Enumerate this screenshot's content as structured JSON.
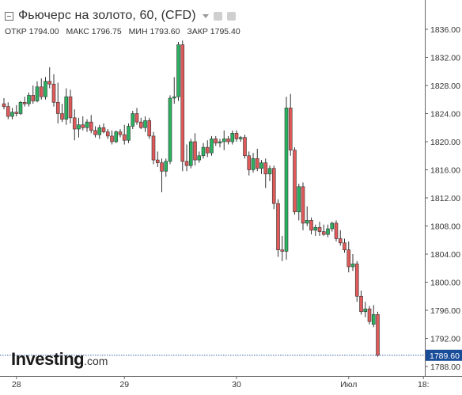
{
  "header": {
    "title": "Фьючерс на золото, 60, (CFD)",
    "ohlc": [
      {
        "label": "ОТКР",
        "value": "1794.00"
      },
      {
        "label": "МАКС",
        "value": "1796.75"
      },
      {
        "label": "МИН",
        "value": "1793.60"
      },
      {
        "label": "ЗАКР",
        "value": "1795.40"
      }
    ]
  },
  "logo": {
    "main": "Investing",
    "suffix": ".com"
  },
  "colors": {
    "up": "#2bb15f",
    "down": "#e05a5a",
    "wick": "#333333",
    "axis": "#666666",
    "price_line": "#1a4d99"
  },
  "chart_data": {
    "type": "candlestick",
    "title": "Фьючерс на золото, 60, (CFD)",
    "xlabel": "",
    "ylabel": "",
    "ylim": [
      1787,
      1839
    ],
    "y_ticks": [
      1788,
      1792,
      1796,
      1800,
      1804,
      1808,
      1812,
      1816,
      1820,
      1824,
      1828,
      1832,
      1836
    ],
    "y_tick_labels": [
      "1788.00",
      "1792.00",
      "1796.00",
      "1800.00",
      "1804.00",
      "1808.00",
      "1812.00",
      "1816.00",
      "1820.00",
      "1824.00",
      "1828.00",
      "1832.00",
      "1836.00"
    ],
    "x_ticks": [
      {
        "label": "28",
        "index": 3
      },
      {
        "label": "29",
        "index": 29
      },
      {
        "label": "30",
        "index": 56
      },
      {
        "label": "Июл",
        "index": 83
      },
      {
        "label": "18:",
        "index": 101
      }
    ],
    "current_price": 1789.6,
    "current_price_label": "1789.60",
    "grid": false,
    "candles": [
      [
        1825.4,
        1826.2,
        1824.6,
        1825.0
      ],
      [
        1825.0,
        1825.6,
        1823.2,
        1823.6
      ],
      [
        1823.6,
        1824.8,
        1823.2,
        1824.2
      ],
      [
        1824.2,
        1825.2,
        1823.6,
        1824.0
      ],
      [
        1824.0,
        1825.8,
        1823.8,
        1825.6
      ],
      [
        1825.6,
        1826.4,
        1825.0,
        1825.4
      ],
      [
        1825.4,
        1827.0,
        1825.0,
        1826.6
      ],
      [
        1826.6,
        1828.0,
        1825.4,
        1825.8
      ],
      [
        1825.8,
        1828.6,
        1825.6,
        1827.8
      ],
      [
        1827.8,
        1829.0,
        1826.0,
        1826.4
      ],
      [
        1826.4,
        1829.2,
        1826.0,
        1828.6
      ],
      [
        1828.6,
        1830.6,
        1827.6,
        1828.2
      ],
      [
        1828.2,
        1829.6,
        1825.0,
        1825.6
      ],
      [
        1825.6,
        1828.4,
        1822.6,
        1824.0
      ],
      [
        1824.0,
        1825.4,
        1822.8,
        1823.2
      ],
      [
        1823.2,
        1827.6,
        1822.4,
        1826.4
      ],
      [
        1826.4,
        1827.4,
        1822.6,
        1823.4
      ],
      [
        1823.4,
        1824.6,
        1820.2,
        1821.8
      ],
      [
        1821.8,
        1823.4,
        1820.6,
        1822.4
      ],
      [
        1822.4,
        1823.6,
        1821.6,
        1822.0
      ],
      [
        1822.0,
        1823.2,
        1821.4,
        1822.8
      ],
      [
        1822.8,
        1823.8,
        1821.2,
        1821.6
      ],
      [
        1821.6,
        1822.2,
        1820.6,
        1821.0
      ],
      [
        1821.0,
        1822.4,
        1820.4,
        1822.0
      ],
      [
        1822.0,
        1822.6,
        1821.2,
        1821.4
      ],
      [
        1821.4,
        1821.8,
        1820.4,
        1820.8
      ],
      [
        1820.8,
        1821.6,
        1819.6,
        1820.0
      ],
      [
        1820.0,
        1821.6,
        1819.8,
        1821.4
      ],
      [
        1821.4,
        1821.8,
        1820.6,
        1821.0
      ],
      [
        1821.0,
        1822.4,
        1819.6,
        1820.2
      ],
      [
        1820.2,
        1822.6,
        1819.8,
        1822.2
      ],
      [
        1822.2,
        1824.4,
        1821.8,
        1824.0
      ],
      [
        1824.0,
        1824.8,
        1822.4,
        1822.8
      ],
      [
        1822.8,
        1823.4,
        1821.8,
        1822.0
      ],
      [
        1822.0,
        1823.6,
        1821.4,
        1823.0
      ],
      [
        1823.0,
        1823.4,
        1820.4,
        1820.8
      ],
      [
        1820.8,
        1821.4,
        1816.8,
        1817.4
      ],
      [
        1817.4,
        1818.6,
        1816.4,
        1817.0
      ],
      [
        1817.0,
        1817.6,
        1812.8,
        1815.8
      ],
      [
        1815.8,
        1817.6,
        1815.0,
        1817.2
      ],
      [
        1817.2,
        1826.6,
        1816.8,
        1826.2
      ],
      [
        1826.2,
        1829.2,
        1825.4,
        1826.4
      ],
      [
        1826.4,
        1834.2,
        1825.8,
        1833.8
      ],
      [
        1833.8,
        1834.4,
        1815.8,
        1817.2
      ],
      [
        1817.2,
        1819.6,
        1815.8,
        1816.6
      ],
      [
        1816.6,
        1820.4,
        1816.2,
        1820.0
      ],
      [
        1820.0,
        1821.2,
        1816.6,
        1817.4
      ],
      [
        1817.4,
        1818.6,
        1817.0,
        1818.0
      ],
      [
        1818.0,
        1819.8,
        1817.6,
        1819.2
      ],
      [
        1819.2,
        1820.2,
        1817.8,
        1818.4
      ],
      [
        1818.4,
        1820.8,
        1818.0,
        1820.4
      ],
      [
        1820.4,
        1820.8,
        1819.4,
        1819.8
      ],
      [
        1819.8,
        1820.4,
        1819.2,
        1820.0
      ],
      [
        1820.0,
        1821.6,
        1818.8,
        1820.4
      ],
      [
        1820.4,
        1820.8,
        1819.6,
        1820.0
      ],
      [
        1820.0,
        1821.6,
        1819.6,
        1821.2
      ],
      [
        1821.2,
        1821.6,
        1820.0,
        1820.4
      ],
      [
        1820.4,
        1820.8,
        1820.0,
        1820.6
      ],
      [
        1820.6,
        1821.0,
        1817.6,
        1818.0
      ],
      [
        1818.0,
        1818.6,
        1815.2,
        1816.0
      ],
      [
        1816.0,
        1818.4,
        1815.6,
        1817.6
      ],
      [
        1817.6,
        1819.0,
        1815.8,
        1816.2
      ],
      [
        1816.2,
        1817.4,
        1815.4,
        1817.0
      ],
      [
        1817.0,
        1817.6,
        1813.4,
        1815.4
      ],
      [
        1815.4,
        1816.6,
        1814.4,
        1816.2
      ],
      [
        1816.2,
        1816.6,
        1810.4,
        1811.2
      ],
      [
        1811.2,
        1811.8,
        1803.6,
        1804.6
      ],
      [
        1804.6,
        1806.6,
        1803.0,
        1804.4
      ],
      [
        1804.4,
        1826.4,
        1803.2,
        1824.8
      ],
      [
        1824.8,
        1826.8,
        1818.0,
        1818.8
      ],
      [
        1818.8,
        1819.2,
        1809.6,
        1810.0
      ],
      [
        1810.0,
        1814.0,
        1808.8,
        1813.6
      ],
      [
        1813.6,
        1814.2,
        1807.4,
        1808.4
      ],
      [
        1808.4,
        1810.8,
        1808.0,
        1808.8
      ],
      [
        1808.8,
        1809.2,
        1806.8,
        1807.4
      ],
      [
        1807.4,
        1808.2,
        1806.6,
        1807.8
      ],
      [
        1807.8,
        1808.6,
        1806.6,
        1807.2
      ],
      [
        1807.2,
        1808.2,
        1806.6,
        1806.8
      ],
      [
        1806.8,
        1808.2,
        1806.4,
        1807.6
      ],
      [
        1807.6,
        1808.6,
        1807.2,
        1808.4
      ],
      [
        1808.4,
        1808.8,
        1805.8,
        1806.2
      ],
      [
        1806.2,
        1807.4,
        1805.2,
        1805.6
      ],
      [
        1805.6,
        1806.2,
        1804.2,
        1804.6
      ],
      [
        1804.6,
        1805.8,
        1801.4,
        1802.2
      ],
      [
        1802.2,
        1804.0,
        1801.6,
        1802.6
      ],
      [
        1802.6,
        1803.0,
        1797.2,
        1798.0
      ],
      [
        1798.0,
        1798.8,
        1795.4,
        1795.8
      ],
      [
        1795.8,
        1797.2,
        1795.0,
        1796.2
      ],
      [
        1796.2,
        1796.6,
        1794.0,
        1794.4
      ],
      [
        1794.0,
        1796.75,
        1793.6,
        1795.4
      ],
      [
        1795.4,
        1795.8,
        1789.4,
        1789.6
      ]
    ]
  }
}
